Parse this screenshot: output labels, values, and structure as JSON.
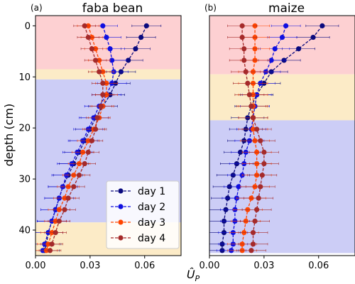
{
  "figure": {
    "ylabel": "depth (cm)",
    "xlabel": "Û",
    "xlabel_sub": "P"
  },
  "chart_data": [
    {
      "type": "line",
      "panel_label": "(a)",
      "title": "faba bean",
      "xlim": [
        0,
        0.08
      ],
      "ylim": [
        45,
        -2
      ],
      "xticks": [
        "0.00",
        "0.03",
        "0.06"
      ],
      "yticks": [
        "0",
        "10",
        "20",
        "30",
        "40"
      ],
      "legend_position": "bottom-right",
      "bands": [
        {
          "y0": -2,
          "y1": 8.5,
          "color": "#fdd0d2"
        },
        {
          "y0": 8.5,
          "y1": 10.5,
          "color": "#fcebc7"
        },
        {
          "y0": 10.5,
          "y1": 38.5,
          "color": "#cccdf6"
        },
        {
          "y0": 38.5,
          "y1": 45,
          "color": "#fcebc7"
        }
      ],
      "series": [
        {
          "name": "day 1",
          "color": "#0a0a7e",
          "points": [
            [
              0.0,
              0.061
            ],
            [
              2.25,
              0.058
            ],
            [
              4.5,
              0.055
            ],
            [
              6.75,
              0.051
            ],
            [
              9.0,
              0.047
            ],
            [
              11.25,
              0.044
            ],
            [
              13.5,
              0.041
            ],
            [
              15.75,
              0.037
            ],
            [
              18.0,
              0.033
            ],
            [
              20.25,
              0.03
            ],
            [
              22.5,
              0.027
            ],
            [
              24.75,
              0.024
            ],
            [
              27.0,
              0.021
            ],
            [
              29.25,
              0.018
            ],
            [
              31.5,
              0.015
            ],
            [
              33.75,
              0.013
            ],
            [
              36.0,
              0.011
            ],
            [
              38.25,
              0.009
            ],
            [
              40.5,
              0.007
            ],
            [
              42.75,
              0.006
            ],
            [
              44.0,
              0.005
            ]
          ],
          "err": 0.008
        },
        {
          "name": "day 2",
          "color": "#0f0fe0",
          "points": [
            [
              0.0,
              0.037
            ],
            [
              2.25,
              0.039
            ],
            [
              4.5,
              0.041
            ],
            [
              6.75,
              0.042
            ],
            [
              9.0,
              0.043
            ],
            [
              11.25,
              0.042
            ],
            [
              13.5,
              0.039
            ],
            [
              15.75,
              0.035
            ],
            [
              18.0,
              0.032
            ],
            [
              20.25,
              0.029
            ],
            [
              22.5,
              0.026
            ],
            [
              24.75,
              0.023
            ],
            [
              27.0,
              0.02
            ],
            [
              29.25,
              0.017
            ],
            [
              31.5,
              0.015
            ],
            [
              33.75,
              0.013
            ],
            [
              36.0,
              0.011
            ],
            [
              38.25,
              0.009
            ],
            [
              40.5,
              0.007
            ],
            [
              42.75,
              0.005
            ],
            [
              44.0,
              0.004
            ]
          ],
          "err": 0.008
        },
        {
          "name": "day 3",
          "color": "#ff4500",
          "points": [
            [
              0.0,
              0.029
            ],
            [
              2.25,
              0.031
            ],
            [
              4.5,
              0.033
            ],
            [
              6.75,
              0.035
            ],
            [
              9.0,
              0.037
            ],
            [
              11.25,
              0.039
            ],
            [
              13.5,
              0.039
            ],
            [
              15.75,
              0.037
            ],
            [
              18.0,
              0.035
            ],
            [
              20.25,
              0.032
            ],
            [
              22.5,
              0.029
            ],
            [
              24.75,
              0.026
            ],
            [
              27.0,
              0.024
            ],
            [
              29.25,
              0.021
            ],
            [
              31.5,
              0.018
            ],
            [
              33.75,
              0.016
            ],
            [
              36.0,
              0.013
            ],
            [
              38.25,
              0.011
            ],
            [
              40.5,
              0.009
            ],
            [
              42.75,
              0.007
            ],
            [
              44.0,
              0.006
            ]
          ],
          "err": 0.006
        },
        {
          "name": "day 4",
          "color": "#a52a2a",
          "points": [
            [
              0.0,
              0.027
            ],
            [
              2.25,
              0.029
            ],
            [
              4.5,
              0.031
            ],
            [
              6.75,
              0.033
            ],
            [
              9.0,
              0.035
            ],
            [
              11.25,
              0.037
            ],
            [
              13.5,
              0.037
            ],
            [
              15.75,
              0.036
            ],
            [
              18.0,
              0.034
            ],
            [
              20.25,
              0.033
            ],
            [
              22.5,
              0.031
            ],
            [
              24.75,
              0.029
            ],
            [
              27.0,
              0.027
            ],
            [
              29.25,
              0.024
            ],
            [
              31.5,
              0.021
            ],
            [
              33.75,
              0.018
            ],
            [
              36.0,
              0.016
            ],
            [
              38.25,
              0.013
            ],
            [
              40.5,
              0.011
            ],
            [
              42.75,
              0.009
            ],
            [
              44.0,
              0.008
            ]
          ],
          "err": 0.006
        }
      ]
    },
    {
      "type": "line",
      "panel_label": "(b)",
      "title": "maize",
      "xlim": [
        0,
        0.08
      ],
      "ylim": [
        45,
        -2
      ],
      "xticks": [
        "0.00",
        "0.03",
        "0.06"
      ],
      "yticks": [],
      "bands": [
        {
          "y0": -2,
          "y1": 9.5,
          "color": "#fdd0d2"
        },
        {
          "y0": 9.5,
          "y1": 18.5,
          "color": "#fcebc7"
        },
        {
          "y0": 18.5,
          "y1": 44.5,
          "color": "#cccdf6"
        }
      ],
      "series": [
        {
          "name": "day 1",
          "color": "#0a0a7e",
          "points": [
            [
              0.0,
              0.062
            ],
            [
              2.25,
              0.057
            ],
            [
              4.5,
              0.049
            ],
            [
              6.75,
              0.041
            ],
            [
              9.0,
              0.034
            ],
            [
              11.25,
              0.03
            ],
            [
              13.5,
              0.026
            ],
            [
              15.75,
              0.023
            ],
            [
              18.0,
              0.021
            ],
            [
              20.25,
              0.02
            ],
            [
              22.5,
              0.019
            ],
            [
              24.75,
              0.017
            ],
            [
              27.0,
              0.015
            ],
            [
              29.25,
              0.013
            ],
            [
              31.5,
              0.011
            ],
            [
              33.75,
              0.01
            ],
            [
              36.0,
              0.009
            ],
            [
              38.25,
              0.008
            ],
            [
              40.5,
              0.008
            ],
            [
              42.75,
              0.007
            ],
            [
              44.0,
              0.007
            ]
          ],
          "err": 0.009
        },
        {
          "name": "day 2",
          "color": "#0f0fe0",
          "points": [
            [
              0.0,
              0.042
            ],
            [
              2.25,
              0.04
            ],
            [
              4.5,
              0.036
            ],
            [
              6.75,
              0.034
            ],
            [
              9.0,
              0.031
            ],
            [
              11.25,
              0.028
            ],
            [
              13.5,
              0.026
            ],
            [
              15.75,
              0.025
            ],
            [
              18.0,
              0.024
            ],
            [
              20.25,
              0.023
            ],
            [
              22.5,
              0.022
            ],
            [
              24.75,
              0.02
            ],
            [
              27.0,
              0.019
            ],
            [
              29.25,
              0.018
            ],
            [
              31.5,
              0.016
            ],
            [
              33.75,
              0.015
            ],
            [
              36.0,
              0.014
            ],
            [
              38.25,
              0.014
            ],
            [
              40.5,
              0.013
            ],
            [
              42.75,
              0.013
            ],
            [
              44.0,
              0.012
            ]
          ],
          "err": 0.008
        },
        {
          "name": "day 3",
          "color": "#ff4500",
          "points": [
            [
              0.0,
              0.025
            ],
            [
              2.25,
              0.025
            ],
            [
              4.5,
              0.025
            ],
            [
              6.75,
              0.025
            ],
            [
              9.0,
              0.024
            ],
            [
              11.25,
              0.024
            ],
            [
              13.5,
              0.024
            ],
            [
              15.75,
              0.024
            ],
            [
              18.0,
              0.024
            ],
            [
              20.25,
              0.024
            ],
            [
              22.5,
              0.025
            ],
            [
              24.75,
              0.026
            ],
            [
              27.0,
              0.026
            ],
            [
              29.25,
              0.026
            ],
            [
              31.5,
              0.025
            ],
            [
              33.75,
              0.023
            ],
            [
              36.0,
              0.021
            ],
            [
              38.25,
              0.02
            ],
            [
              40.5,
              0.019
            ],
            [
              42.75,
              0.018
            ],
            [
              44.0,
              0.018
            ]
          ],
          "err": 0.008
        },
        {
          "name": "day 4",
          "color": "#a52a2a",
          "points": [
            [
              0.0,
              0.018
            ],
            [
              2.25,
              0.018
            ],
            [
              4.5,
              0.019
            ],
            [
              6.75,
              0.019
            ],
            [
              9.0,
              0.02
            ],
            [
              11.25,
              0.021
            ],
            [
              13.5,
              0.022
            ],
            [
              15.75,
              0.023
            ],
            [
              18.0,
              0.024
            ],
            [
              20.25,
              0.026
            ],
            [
              22.5,
              0.028
            ],
            [
              24.75,
              0.03
            ],
            [
              27.0,
              0.03
            ],
            [
              29.25,
              0.029
            ],
            [
              31.5,
              0.028
            ],
            [
              33.75,
              0.027
            ],
            [
              36.0,
              0.026
            ],
            [
              38.25,
              0.025
            ],
            [
              40.5,
              0.024
            ],
            [
              42.75,
              0.024
            ],
            [
              44.0,
              0.023
            ]
          ],
          "err": 0.008
        }
      ]
    }
  ]
}
